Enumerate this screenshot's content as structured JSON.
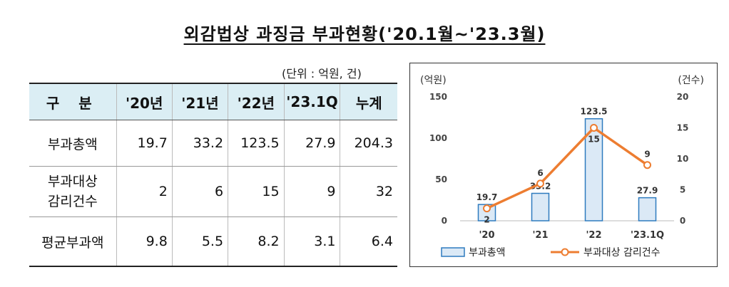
{
  "title": "외감법상  과징금  부과현황('20.1월~'23.3월)",
  "table": {
    "unit": "(단위 : 억원, 건)",
    "headers": [
      "구 분",
      "'20년",
      "'21년",
      "'22년",
      "'23.1Q",
      "누계"
    ],
    "rows": [
      {
        "label": "부과총액",
        "values": [
          "19.7",
          "33.2",
          "123.5",
          "27.9",
          "204.3"
        ]
      },
      {
        "label": "부과대상\n감리건수",
        "values": [
          "2",
          "6",
          "15",
          "9",
          "32"
        ]
      },
      {
        "label": "평균부과액",
        "values": [
          "9.8",
          "5.5",
          "8.2",
          "3.1",
          "6.4"
        ]
      }
    ]
  },
  "chart_data": {
    "type": "bar",
    "categories": [
      "'20",
      "'21",
      "'22",
      "'23.1Q"
    ],
    "series": [
      {
        "name": "부과총액",
        "type": "bar",
        "axis": "left",
        "values": [
          19.7,
          33.2,
          123.5,
          27.9
        ],
        "color": "#dbe9f6",
        "stroke": "#2e7bbf"
      },
      {
        "name": "부과대상 감리건수",
        "type": "line",
        "axis": "right",
        "values": [
          2,
          6,
          15,
          9
        ],
        "color": "#ed7d31"
      }
    ],
    "ylabel_left": "(억원)",
    "ylabel_right": "(건수)",
    "ylim_left": [
      0,
      150
    ],
    "ylim_right": [
      0,
      20
    ],
    "yticks_left": [
      0,
      50,
      100,
      150
    ],
    "yticks_right": [
      0,
      5,
      10,
      15,
      20
    ],
    "grid": false,
    "legend": "bottom"
  }
}
